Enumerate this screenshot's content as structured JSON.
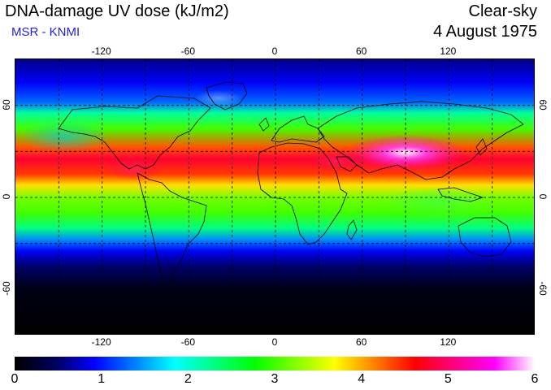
{
  "header": {
    "title": "DNA-damage UV dose (kJ/m2)",
    "subtitle": "MSR - KNMI",
    "sky_condition": "Clear-sky",
    "date": "4 August 1975"
  },
  "map": {
    "lon_range": [
      -180,
      180
    ],
    "lat_range": [
      -90,
      90
    ],
    "lon_ticks": [
      "-120",
      "-60",
      "0",
      "60",
      "120"
    ],
    "lat_ticks": [
      "60",
      "0",
      "-60"
    ],
    "grid": "dashed 30-degree graticule",
    "field_profile": [
      {
        "lat": 90,
        "value": 0.6
      },
      {
        "lat": 75,
        "value": 0.9
      },
      {
        "lat": 62,
        "value": 1.3
      },
      {
        "lat": 55,
        "value": 2.2
      },
      {
        "lat": 45,
        "value": 3.0
      },
      {
        "lat": 33,
        "value": 4.3
      },
      {
        "lat": 25,
        "value": 4.8
      },
      {
        "lat": 15,
        "value": 4.4
      },
      {
        "lat": 8,
        "value": 3.8
      },
      {
        "lat": 0,
        "value": 3.2
      },
      {
        "lat": -10,
        "value": 3.0
      },
      {
        "lat": -20,
        "value": 2.3
      },
      {
        "lat": -28,
        "value": 1.4
      },
      {
        "lat": -35,
        "value": 0.9
      },
      {
        "lat": -45,
        "value": 0.5
      },
      {
        "lat": -60,
        "value": 0.1
      },
      {
        "lat": -90,
        "value": 0.0
      }
    ]
  },
  "colorbar": {
    "min": 0,
    "max": 6,
    "labels": [
      "0",
      "1",
      "2",
      "3",
      "4",
      "5",
      "6"
    ],
    "colors": [
      "#000000",
      "#00005a",
      "#0000ff",
      "#0080ff",
      "#00ffff",
      "#00ff80",
      "#00ff00",
      "#80ff00",
      "#ffff00",
      "#ff8000",
      "#ff0000",
      "#ff0080",
      "#ff00ff",
      "#ffffff"
    ]
  }
}
